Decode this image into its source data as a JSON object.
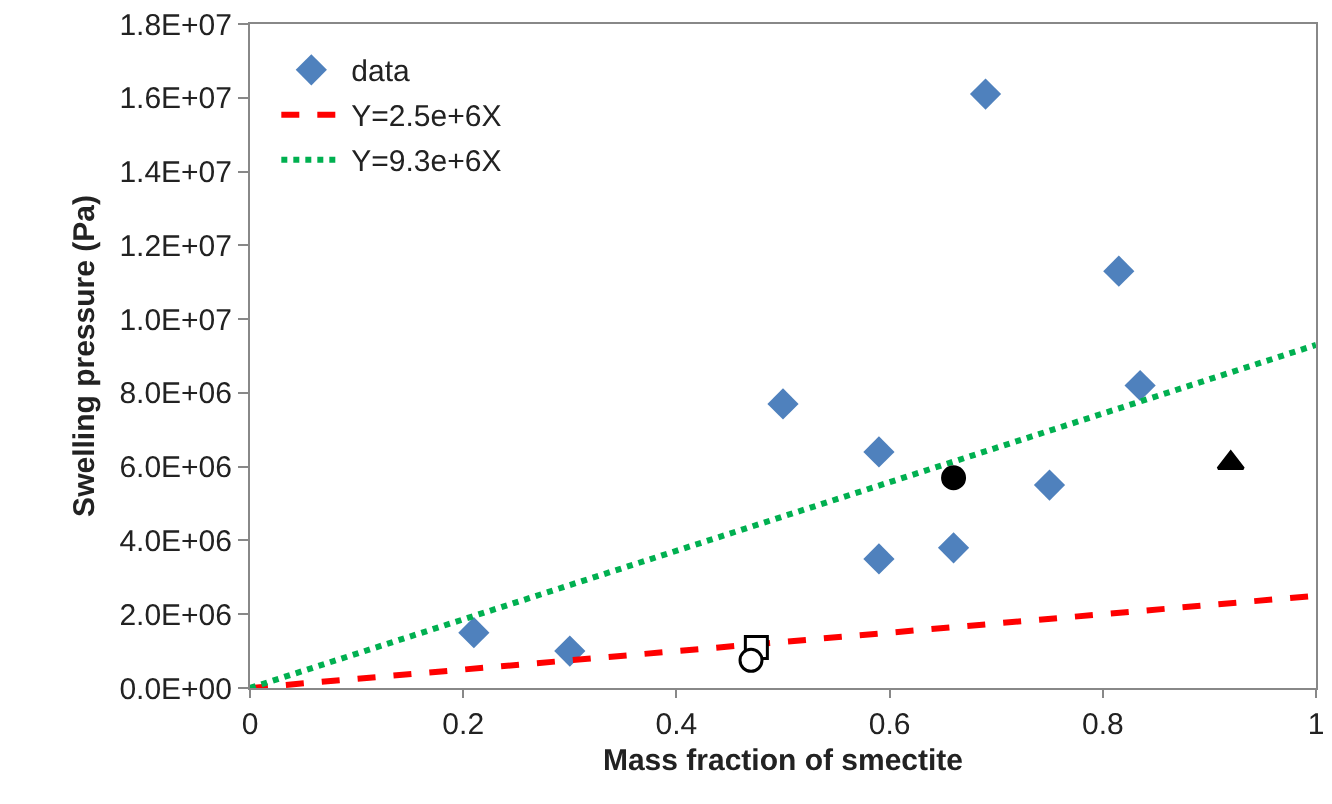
{
  "chart_data": {
    "type": "scatter",
    "xlabel": "Mass fraction of smectite",
    "ylabel": "Swelling pressure (Pa)",
    "xlim": [
      0,
      1
    ],
    "xticks": [
      0,
      0.2,
      0.4,
      0.6,
      0.8,
      1
    ],
    "ylim": [
      0,
      18000000
    ],
    "yticks": [
      {
        "value": 0,
        "label": "0.0E+00"
      },
      {
        "value": 2000000,
        "label": "2.0E+06"
      },
      {
        "value": 4000000,
        "label": "4.0E+06"
      },
      {
        "value": 6000000,
        "label": "6.0E+06"
      },
      {
        "value": 8000000,
        "label": "8.0E+06"
      },
      {
        "value": 10000000,
        "label": "1.0E+07"
      },
      {
        "value": 12000000,
        "label": "1.2E+07"
      },
      {
        "value": 14000000,
        "label": "1.4E+07"
      },
      {
        "value": 16000000,
        "label": "1.6E+07"
      },
      {
        "value": 18000000,
        "label": "1.8E+07"
      }
    ],
    "grid": false,
    "legend": "top left",
    "series": [
      {
        "name": "data",
        "marker": "diamond",
        "color": "#4f81bd",
        "x": [
          0.21,
          0.3,
          0.5,
          0.59,
          0.59,
          0.66,
          0.69,
          0.75,
          0.815,
          0.835
        ],
        "values": [
          1500000,
          1000000,
          7700000,
          6400000,
          3500000,
          3800000,
          16100000,
          5500000,
          11300000,
          8200000
        ]
      },
      {
        "name": "Y=2.5e+6X",
        "type": "line",
        "marker": "none",
        "line_style": "dashed",
        "color": "#ff0000",
        "x": [
          0,
          1
        ],
        "values": [
          0,
          2500000
        ]
      },
      {
        "name": "Y=9.3e+6X",
        "type": "line",
        "marker": "none",
        "line_style": "dotted",
        "color": "#00b050",
        "x": [
          0,
          1
        ],
        "values": [
          0,
          9300000
        ]
      },
      {
        "marker": "circle",
        "color": "#000000",
        "x": [
          0.66
        ],
        "values": [
          5700000
        ]
      },
      {
        "marker": "triangle",
        "color": "#000000",
        "x": [
          0.92
        ],
        "values": [
          6100000
        ]
      },
      {
        "marker": "square",
        "color": "#ffffff",
        "x": [
          0.475
        ],
        "values": [
          1100000
        ]
      },
      {
        "marker": "circle",
        "color": "#ffffff",
        "x": [
          0.47
        ],
        "values": [
          750000
        ]
      }
    ]
  }
}
